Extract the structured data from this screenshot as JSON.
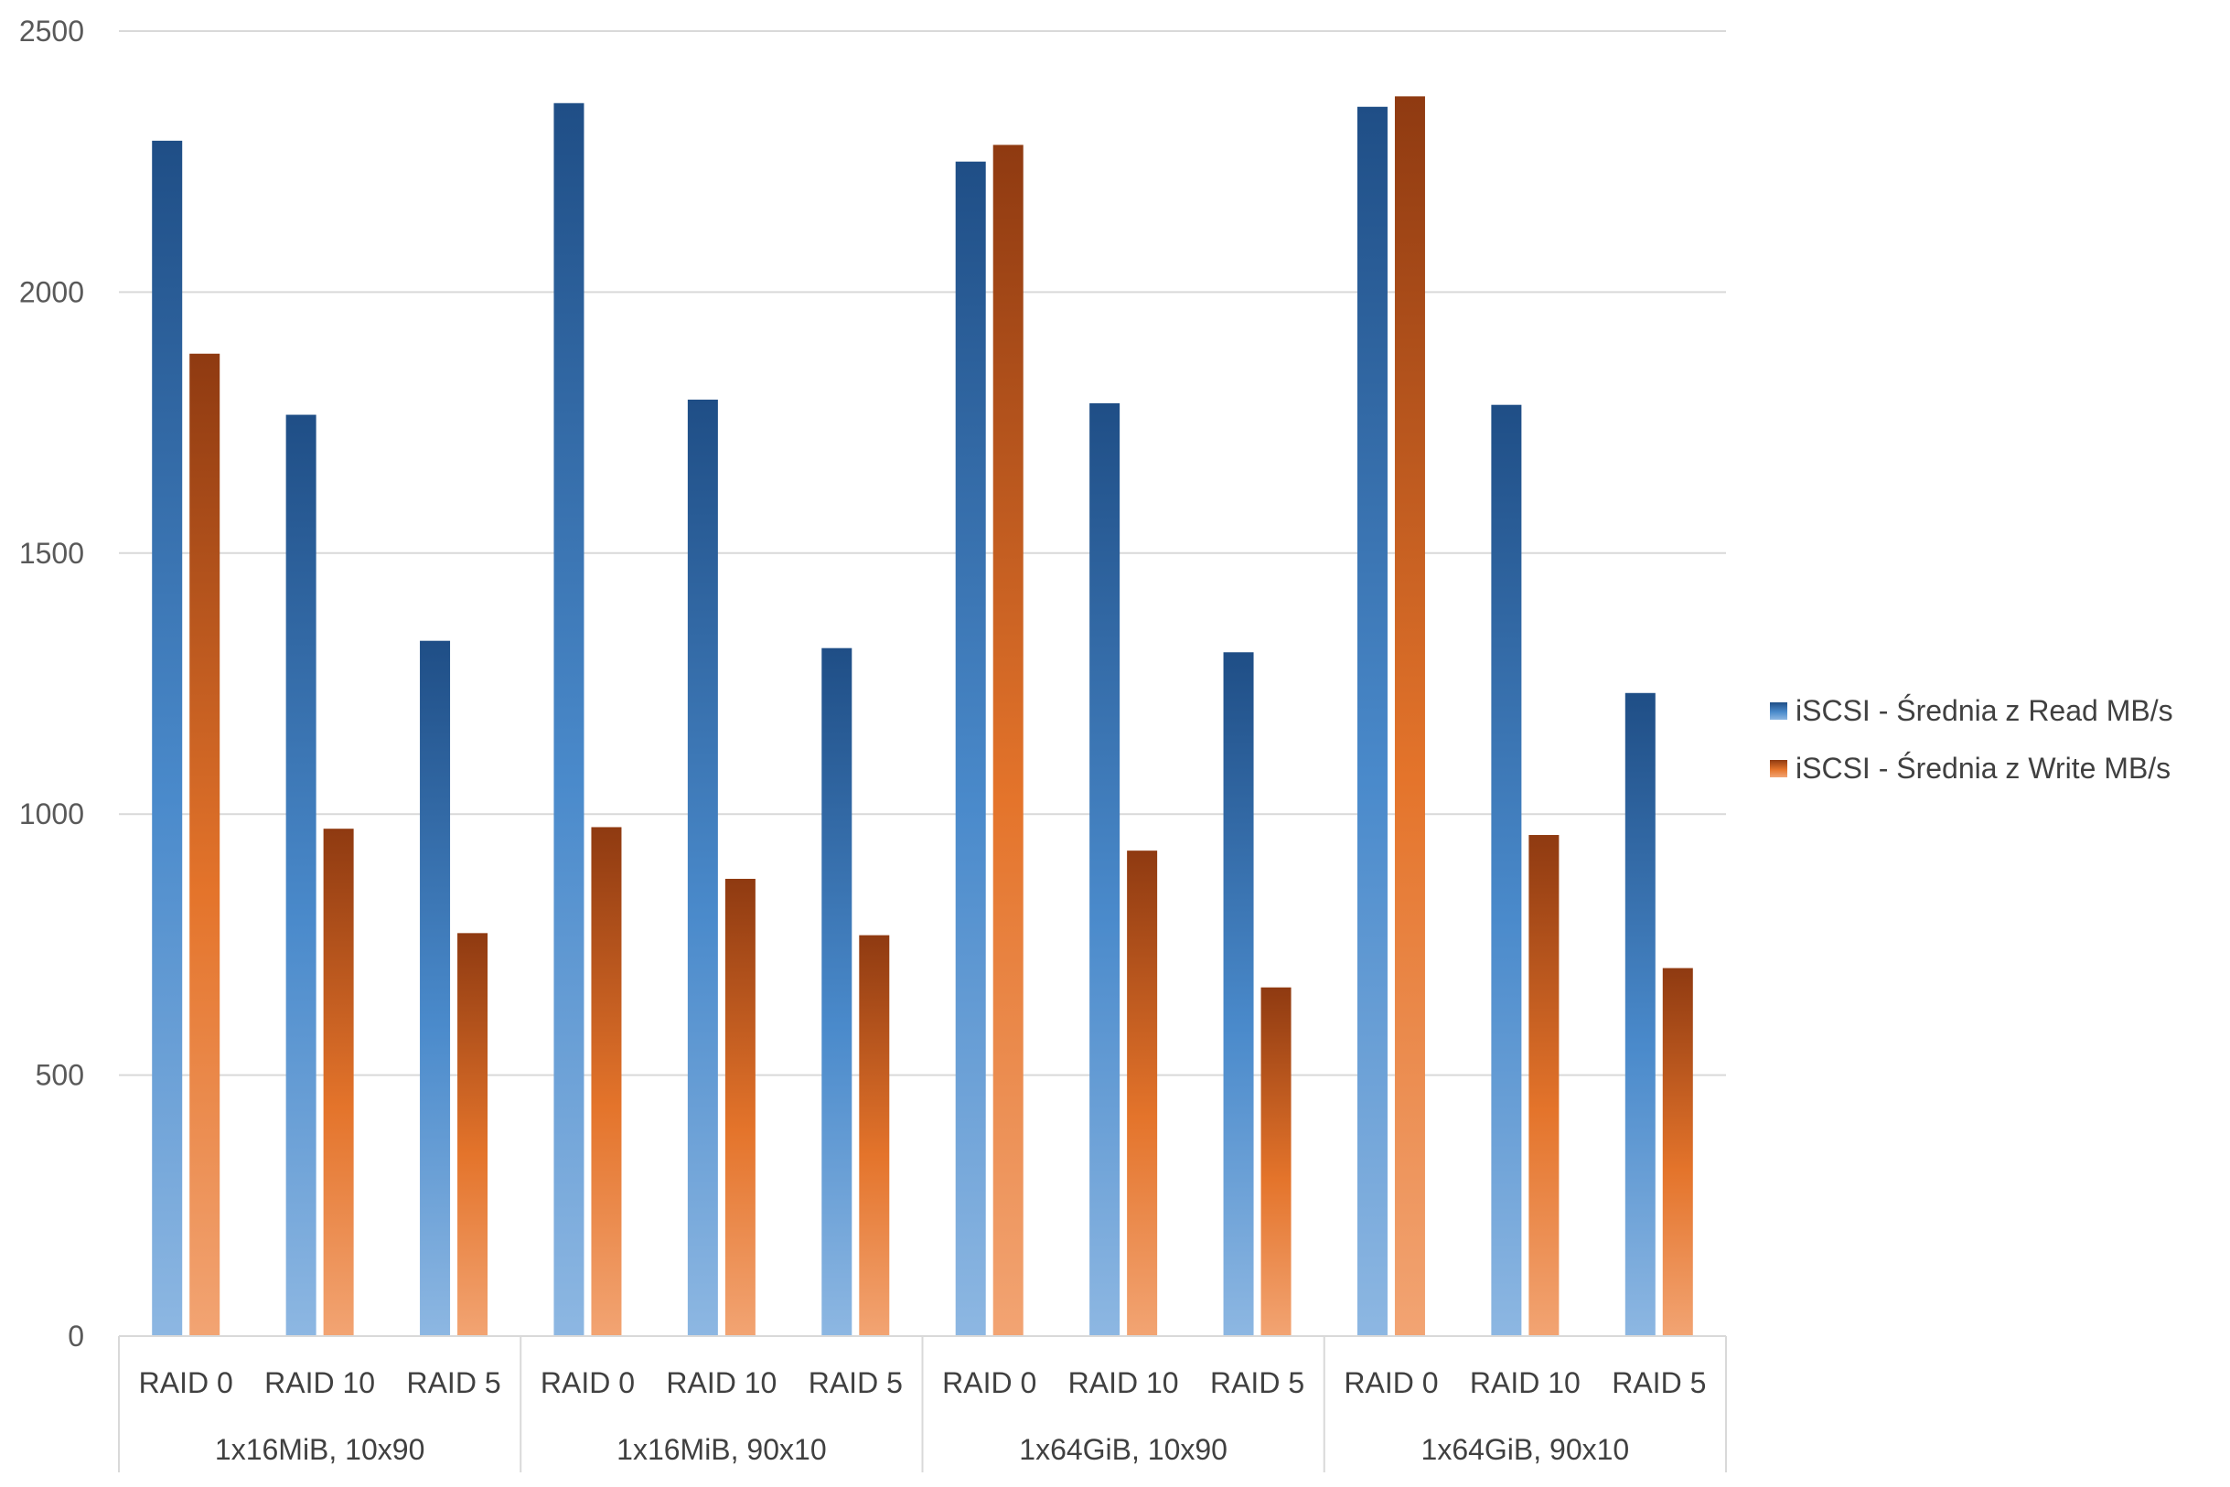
{
  "chart_data": {
    "type": "bar",
    "groups": [
      "1x16MiB, 10x90",
      "1x16MiB, 90x10",
      "1x64GiB, 10x90",
      "1x64GiB, 90x10"
    ],
    "categories": [
      "RAID 0",
      "RAID 10",
      "RAID 5",
      "RAID 0",
      "RAID 10",
      "RAID 5",
      "RAID 0",
      "RAID 10",
      "RAID 5",
      "RAID 0",
      "RAID 10",
      "RAID 5"
    ],
    "series": [
      {
        "name": "iSCSI - Średnia z Read MB/s",
        "color": "#2E6DB0",
        "values": [
          2290,
          1765,
          1332,
          2362,
          1794,
          1318,
          2250,
          1787,
          1310,
          2355,
          1784,
          1232
        ]
      },
      {
        "name": "iSCSI - Średnia z Write MB/s",
        "color": "#D0631F",
        "values": [
          1882,
          972,
          772,
          975,
          876,
          768,
          2282,
          930,
          668,
          2375,
          960,
          705
        ]
      }
    ],
    "yticks": [
      0,
      500,
      1000,
      1500,
      2000,
      2500
    ],
    "ylim": [
      0,
      2500
    ],
    "grid": true,
    "legend": "right",
    "title": "",
    "xlabel": "",
    "ylabel": ""
  }
}
